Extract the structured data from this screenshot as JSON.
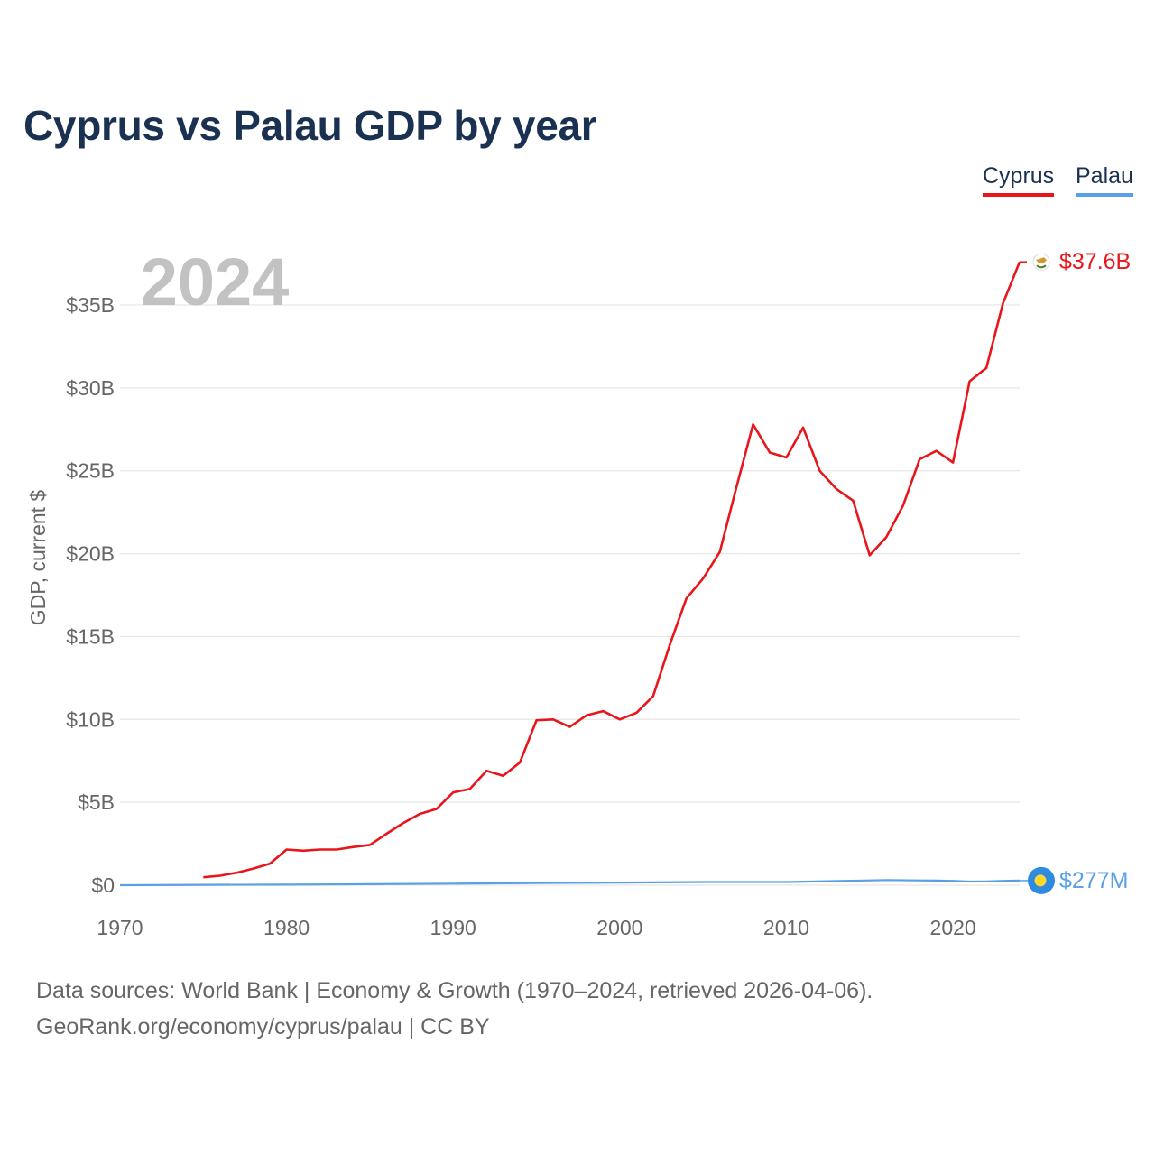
{
  "title": "Cyprus vs Palau GDP by year",
  "year_label": "2024",
  "legend": [
    {
      "name": "Cyprus",
      "color": "#e8161b"
    },
    {
      "name": "Palau",
      "color": "#5aa0e6"
    }
  ],
  "end_labels": {
    "cyprus": "$37.6B",
    "palau": "$277M"
  },
  "footer": {
    "sources": "Data sources: World Bank | Economy & Growth (1970–2024, retrieved 2026-04-06).",
    "credit": "GeoRank.org/economy/cyprus/palau | CC BY"
  },
  "chart_data": {
    "type": "line",
    "title": "Cyprus vs Palau GDP by year",
    "xlabel": "",
    "ylabel": "GDP, current $",
    "xlim": [
      1970,
      2024
    ],
    "ylim": [
      0,
      37.6
    ],
    "y_unit": "billion USD",
    "x_ticks": [
      1970,
      1980,
      1990,
      2000,
      2010,
      2020
    ],
    "y_ticks": [
      0,
      5,
      10,
      15,
      20,
      25,
      30,
      35
    ],
    "y_tick_labels": [
      "$0",
      "$5B",
      "$10B",
      "$15B",
      "$20B",
      "$25B",
      "$30B",
      "$35B"
    ],
    "grid": true,
    "series": [
      {
        "name": "Cyprus",
        "color": "#e8161b",
        "x": [
          1975,
          1976,
          1977,
          1978,
          1979,
          1980,
          1981,
          1982,
          1983,
          1984,
          1985,
          1986,
          1987,
          1988,
          1989,
          1990,
          1991,
          1992,
          1993,
          1994,
          1995,
          1996,
          1997,
          1998,
          1999,
          2000,
          2001,
          2002,
          2003,
          2004,
          2005,
          2006,
          2007,
          2008,
          2009,
          2010,
          2011,
          2012,
          2013,
          2014,
          2015,
          2016,
          2017,
          2018,
          2019,
          2020,
          2021,
          2022,
          2023,
          2024
        ],
        "values": [
          0.48,
          0.57,
          0.75,
          1.0,
          1.3,
          2.15,
          2.08,
          2.15,
          2.15,
          2.3,
          2.43,
          3.1,
          3.75,
          4.3,
          4.6,
          5.6,
          5.8,
          6.9,
          6.6,
          7.4,
          9.95,
          10.0,
          9.55,
          10.25,
          10.5,
          10.0,
          10.4,
          11.4,
          14.5,
          17.3,
          18.5,
          20.1,
          24.0,
          27.8,
          26.1,
          25.8,
          27.6,
          25.0,
          23.9,
          23.2,
          19.9,
          21.0,
          22.9,
          25.7,
          26.2,
          25.5,
          30.4,
          31.2,
          35.1,
          37.6
        ]
      },
      {
        "name": "Palau",
        "color": "#5aa0e6",
        "x": [
          1970,
          1975,
          1980,
          1985,
          1990,
          1995,
          2000,
          2005,
          2010,
          2015,
          2016,
          2019,
          2020,
          2021,
          2022,
          2023,
          2024
        ],
        "values": [
          0.0,
          0.02,
          0.03,
          0.06,
          0.09,
          0.13,
          0.16,
          0.19,
          0.19,
          0.29,
          0.31,
          0.28,
          0.26,
          0.22,
          0.23,
          0.26,
          0.277
        ]
      }
    ]
  }
}
